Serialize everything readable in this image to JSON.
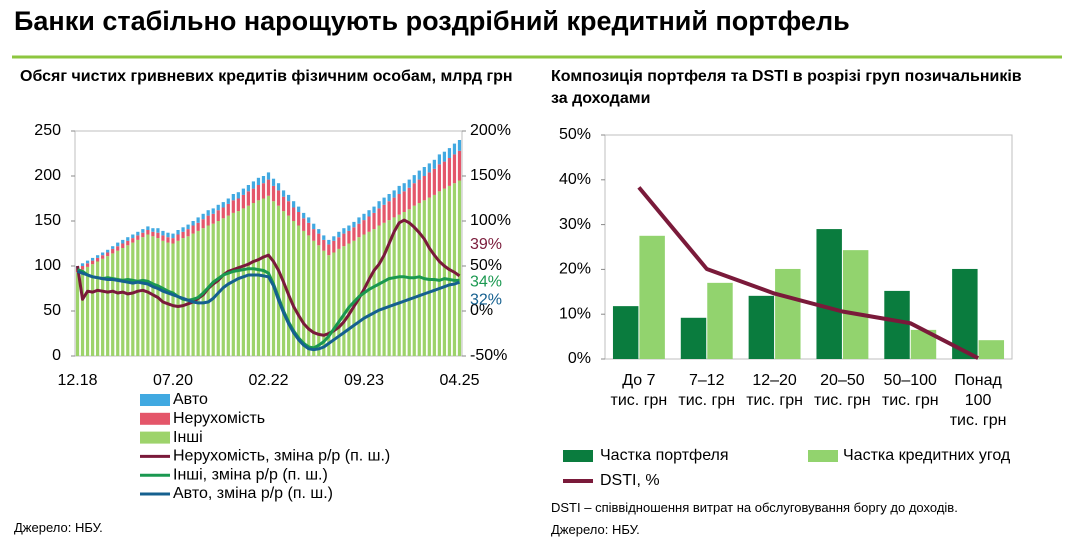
{
  "title": "Банки стабільно нарощують роздрібний кредитний портфель",
  "chart_data": [
    {
      "type": "bar",
      "stacked": true,
      "title": "Обсяг чистих гривневих кредитів фізичним особам, млрд грн",
      "categories": [
        "12.18",
        null,
        null,
        null,
        null,
        null,
        null,
        null,
        null,
        null,
        null,
        null,
        null,
        null,
        null,
        null,
        null,
        null,
        null,
        "07.20",
        null,
        null,
        null,
        null,
        null,
        null,
        null,
        null,
        null,
        null,
        null,
        null,
        null,
        null,
        null,
        null,
        null,
        null,
        "02.22",
        null,
        null,
        null,
        null,
        null,
        null,
        null,
        null,
        null,
        null,
        null,
        null,
        null,
        null,
        null,
        null,
        null,
        null,
        "09.23",
        null,
        null,
        null,
        null,
        null,
        null,
        null,
        null,
        null,
        null,
        null,
        null,
        null,
        null,
        null,
        null,
        null,
        null,
        "04.25"
      ],
      "ylim": [
        0,
        250
      ],
      "yticks": [
        0,
        50,
        100,
        150,
        200,
        250
      ],
      "y2lim": [
        -50,
        200
      ],
      "y2ticks": [
        {
          "value": -50,
          "label": "-50%"
        },
        {
          "value": 0,
          "label": "0%"
        },
        {
          "value": 50,
          "label": "50%"
        },
        {
          "value": 100,
          "label": "100%"
        },
        {
          "value": 150,
          "label": "150%"
        },
        {
          "value": 200,
          "label": "200%"
        }
      ],
      "grid": false,
      "series": [
        {
          "name": "Авто",
          "color": "#41a9e1",
          "values": [
            3,
            3,
            3,
            3,
            3,
            3,
            3,
            3,
            4,
            4,
            4,
            4,
            4,
            4,
            4,
            4,
            5,
            5,
            5,
            5,
            5,
            5,
            5,
            5,
            6,
            6,
            6,
            6,
            6,
            6,
            6,
            7,
            7,
            7,
            7,
            8,
            8,
            8,
            8,
            8,
            8,
            7,
            7,
            7,
            6,
            6,
            6,
            6,
            5,
            5,
            5,
            5,
            6,
            6,
            6,
            6,
            7,
            7,
            7,
            7,
            8,
            8,
            8,
            8,
            9,
            9,
            9,
            9,
            10,
            10,
            10,
            10,
            11,
            11,
            11,
            12,
            12
          ]
        },
        {
          "name": "Нерухомість",
          "color": "#e4566a",
          "values": [
            4,
            4,
            4,
            4,
            4,
            4,
            4,
            5,
            5,
            5,
            5,
            5,
            5,
            5,
            5,
            5,
            6,
            6,
            6,
            6,
            7,
            7,
            8,
            9,
            9,
            10,
            11,
            11,
            12,
            12,
            13,
            14,
            14,
            15,
            16,
            16,
            17,
            17,
            18,
            17,
            17,
            16,
            16,
            15,
            15,
            14,
            14,
            13,
            13,
            12,
            12,
            13,
            13,
            14,
            14,
            15,
            15,
            16,
            17,
            18,
            19,
            20,
            21,
            22,
            23,
            23,
            24,
            25,
            26,
            27,
            28,
            29,
            30,
            30,
            31,
            32,
            33
          ]
        },
        {
          "name": "Інші",
          "color": "#9dd36b",
          "values": [
            93,
            96,
            99,
            102,
            105,
            108,
            111,
            114,
            117,
            120,
            123,
            126,
            129,
            132,
            135,
            133,
            131,
            128,
            126,
            125,
            128,
            131,
            133,
            136,
            139,
            142,
            145,
            147,
            150,
            153,
            156,
            159,
            161,
            164,
            167,
            170,
            173,
            175,
            178,
            172,
            167,
            161,
            156,
            150,
            145,
            139,
            134,
            128,
            123,
            117,
            112,
            115,
            119,
            122,
            125,
            128,
            132,
            135,
            138,
            141,
            145,
            148,
            151,
            154,
            157,
            160,
            163,
            167,
            170,
            173,
            176,
            179,
            183,
            186,
            189,
            192,
            195
          ]
        },
        {
          "name": "Нерухомість, зміна р/р (п. ш.)",
          "type": "line",
          "axis": "y2",
          "color": "#7a1a3a",
          "end_label": "39%",
          "values": [
            50,
            13,
            22,
            21,
            23,
            22,
            21,
            22,
            20,
            21,
            19,
            20,
            22,
            23,
            21,
            18,
            15,
            10,
            8,
            6,
            5,
            6,
            8,
            10,
            14,
            18,
            25,
            30,
            34,
            40,
            44,
            46,
            48,
            50,
            52,
            55,
            57,
            60,
            62,
            55,
            45,
            32,
            18,
            5,
            -5,
            -14,
            -20,
            -24,
            -26,
            -27,
            -25,
            -22,
            -18,
            -12,
            -4,
            5,
            14,
            24,
            35,
            45,
            52,
            62,
            75,
            88,
            98,
            101,
            98,
            93,
            87,
            80,
            70,
            62,
            55,
            50,
            46,
            43,
            39
          ]
        },
        {
          "name": "Інші, зміна р/р (п. ш.)",
          "type": "line",
          "axis": "y2",
          "color": "#1a9850",
          "end_label": "34%",
          "values": [
            46,
            44,
            40,
            38,
            37,
            36,
            37,
            36,
            35,
            34,
            35,
            34,
            33,
            34,
            33,
            30,
            28,
            25,
            22,
            20,
            16,
            13,
            12,
            13,
            15,
            20,
            26,
            32,
            36,
            40,
            42,
            44,
            45,
            46,
            47,
            47,
            46,
            45,
            42,
            30,
            15,
            0,
            -12,
            -22,
            -30,
            -36,
            -40,
            -41,
            -38,
            -34,
            -28,
            -20,
            -12,
            -4,
            4,
            10,
            16,
            20,
            24,
            27,
            30,
            33,
            36,
            37,
            38,
            38,
            37,
            37,
            38,
            36,
            35,
            35,
            34,
            36,
            35,
            34,
            34
          ]
        },
        {
          "name": "Авто, зміна р/р (п. ш.)",
          "type": "line",
          "axis": "y2",
          "color": "#15608f",
          "end_label": "32%",
          "values": [
            44,
            42,
            40,
            38,
            37,
            36,
            35,
            35,
            34,
            33,
            32,
            31,
            32,
            31,
            30,
            27,
            25,
            22,
            20,
            18,
            16,
            14,
            12,
            10,
            9,
            9,
            10,
            14,
            20,
            26,
            30,
            33,
            36,
            38,
            40,
            40,
            40,
            39,
            38,
            28,
            12,
            -2,
            -14,
            -24,
            -32,
            -38,
            -42,
            -43,
            -42,
            -40,
            -36,
            -32,
            -28,
            -24,
            -20,
            -16,
            -12,
            -8,
            -5,
            -2,
            1,
            3,
            5,
            7,
            9,
            11,
            13,
            15,
            17,
            19,
            21,
            23,
            25,
            27,
            29,
            30,
            32
          ]
        }
      ],
      "source": "Джерело: НБУ."
    },
    {
      "type": "bar",
      "stacked": false,
      "title": "Композиція портфеля та DSTI в розрізі груп позичальників за доходами",
      "categories": [
        "До 7\nтис. грн",
        "7–12\nтис. грн",
        "12–20\nтис. грн",
        "20–50\nтис. грн",
        "50–100\nтис. грн",
        "Понад\n100\nтис. грн"
      ],
      "ylim": [
        0,
        50
      ],
      "yticks": [
        {
          "value": 0,
          "label": "0%"
        },
        {
          "value": 10,
          "label": "10%"
        },
        {
          "value": 20,
          "label": "20%"
        },
        {
          "value": 30,
          "label": "30%"
        },
        {
          "value": 40,
          "label": "40%"
        },
        {
          "value": 50,
          "label": "50%"
        }
      ],
      "grid": false,
      "series": [
        {
          "name": "Частка портфеля",
          "color": "#0a7c3e",
          "values": [
            11.8,
            9.2,
            14.1,
            29,
            15.2,
            20.1
          ]
        },
        {
          "name": "Частка кредитних угод",
          "color": "#92d36e",
          "values": [
            27.5,
            17,
            20.1,
            24.3,
            6.5,
            4.2
          ]
        },
        {
          "name": "DSTI, %",
          "type": "line",
          "color": "#7a1a3a",
          "values": [
            38.3,
            20.1,
            14.6,
            10.6,
            8,
            0.2
          ]
        }
      ],
      "note": "DSTI – співвідношення витрат на обслуговування боргу до доходів.",
      "source": "Джерело: НБУ."
    }
  ]
}
